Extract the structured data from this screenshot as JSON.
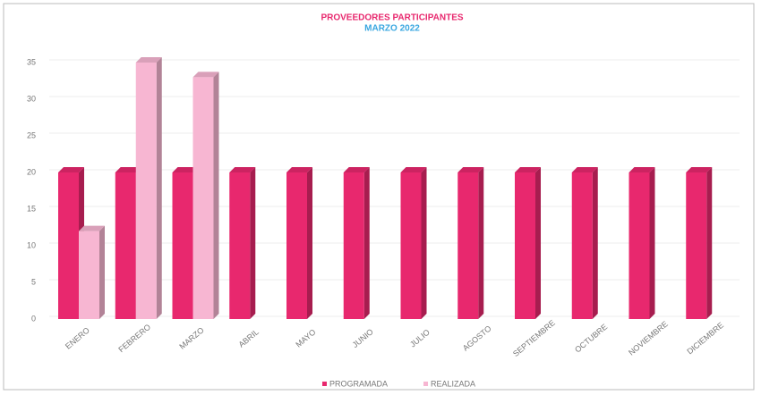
{
  "chart_data": {
    "type": "bar3d",
    "title": "PROVEEDORES PARTICIPANTES",
    "subtitle": "MARZO 2022",
    "categories": [
      "ENERO",
      "FEBRERO",
      "MARZO",
      "ABRIL",
      "MAYO",
      "JUNIO",
      "JULIO",
      "AGOSTO",
      "SEPTIEMBRE",
      "OCTUBRE",
      "NOVIEMBRE",
      "DICIEMBRE"
    ],
    "series": [
      {
        "name": "PROGRAMADA",
        "color": "#e8286e",
        "values": [
          20,
          20,
          20,
          20,
          20,
          20,
          20,
          20,
          20,
          20,
          20,
          20
        ]
      },
      {
        "name": "REALIZADA",
        "color": "#f7b6d2",
        "values": [
          12,
          35,
          33,
          null,
          null,
          null,
          null,
          null,
          null,
          null,
          null,
          null
        ]
      }
    ],
    "ylim": [
      0,
      35
    ],
    "yticks": [
      0,
      5,
      10,
      15,
      20,
      25,
      30,
      35
    ],
    "grid": true,
    "legend": "bottom"
  }
}
